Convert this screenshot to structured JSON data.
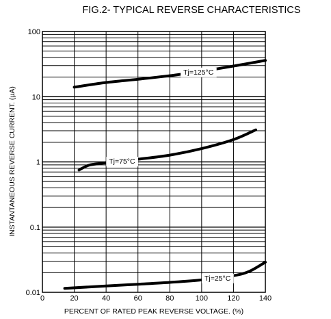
{
  "chart_data": {
    "type": "line",
    "title": "FIG.2- TYPICAL REVERSE CHARACTERISTICS",
    "xlabel": "PERCENT OF RATED PEAK REVERSE VOLTAGE. (%)",
    "ylabel": "INSTANTANEOUS REVERSE CURRENT. (µA)",
    "xlim": [
      0,
      140
    ],
    "ylim": [
      0.01,
      100
    ],
    "yscale": "log",
    "grid": true,
    "x_ticks": [
      "0",
      "20",
      "40",
      "60",
      "80",
      "100",
      "120",
      "140"
    ],
    "y_ticks": [
      "0.01",
      "0.1",
      "1",
      "10",
      "100"
    ],
    "series": [
      {
        "name": "Tj=125°C",
        "x": [
          20,
          40,
          60,
          80,
          100,
          120,
          140
        ],
        "y": [
          14,
          16.5,
          18.5,
          21,
          24.5,
          29.5,
          36
        ]
      },
      {
        "name": "Tj=75°C",
        "x": [
          23,
          25,
          30,
          40,
          60,
          80,
          100,
          120,
          134
        ],
        "y": [
          0.75,
          0.8,
          0.9,
          0.97,
          1.1,
          1.27,
          1.6,
          2.2,
          3.1
        ]
      },
      {
        "name": "Tj=25°C",
        "x": [
          14,
          40,
          60,
          80,
          100,
          120,
          130,
          140
        ],
        "y": [
          0.0115,
          0.0125,
          0.0133,
          0.0142,
          0.0155,
          0.018,
          0.021,
          0.029
        ]
      }
    ]
  }
}
